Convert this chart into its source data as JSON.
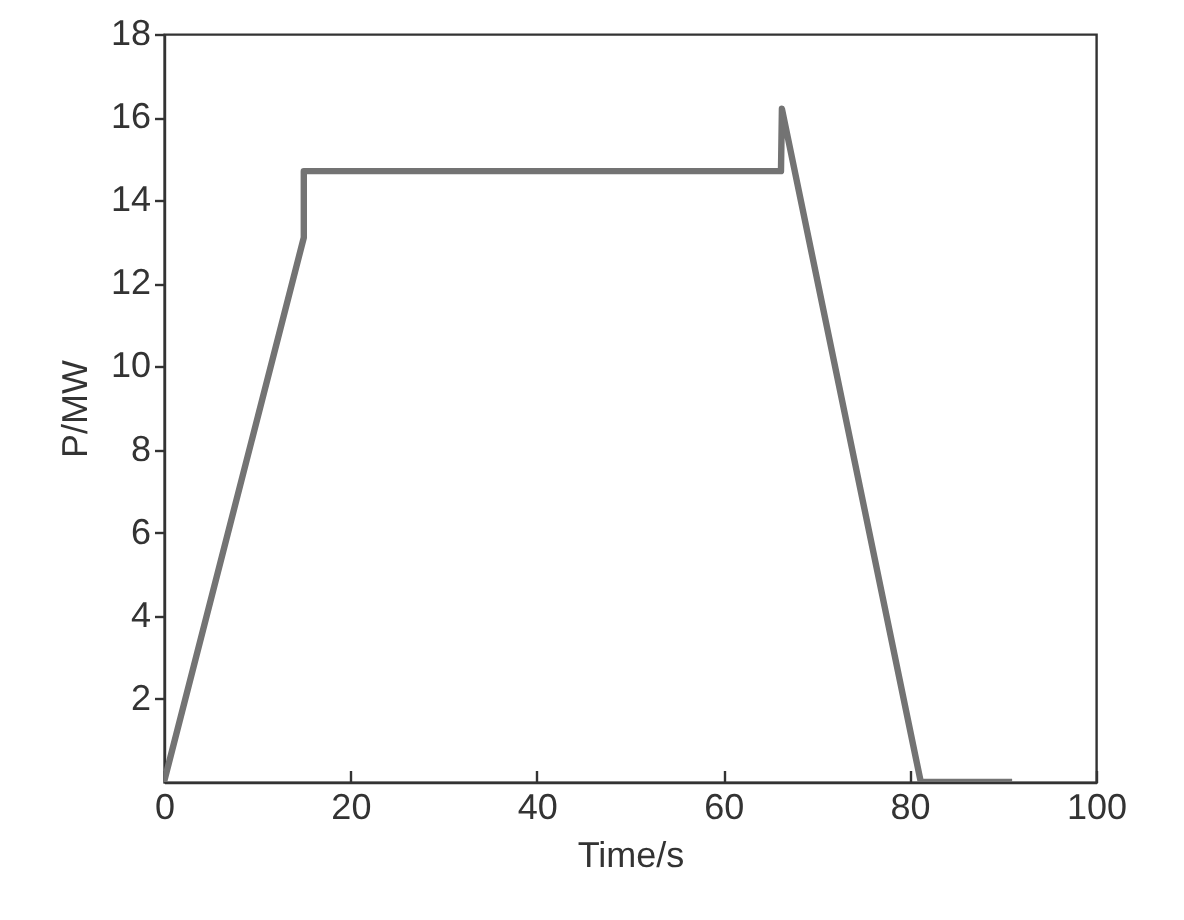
{
  "chart_data": {
    "type": "line",
    "xlabel": "Time/s",
    "ylabel": "P/MW",
    "x": [
      0,
      15,
      15,
      66.2,
      66.3,
      81.2,
      91
    ],
    "values": [
      0,
      13.1,
      14.7,
      14.7,
      16.2,
      0,
      0
    ],
    "color": "#737373",
    "xlim": [
      0,
      100
    ],
    "ylim": [
      0,
      18
    ],
    "xticks": [
      0,
      20,
      40,
      60,
      80,
      100
    ],
    "yticks": [
      2,
      4,
      6,
      8,
      10,
      12,
      14,
      16,
      18
    ]
  }
}
